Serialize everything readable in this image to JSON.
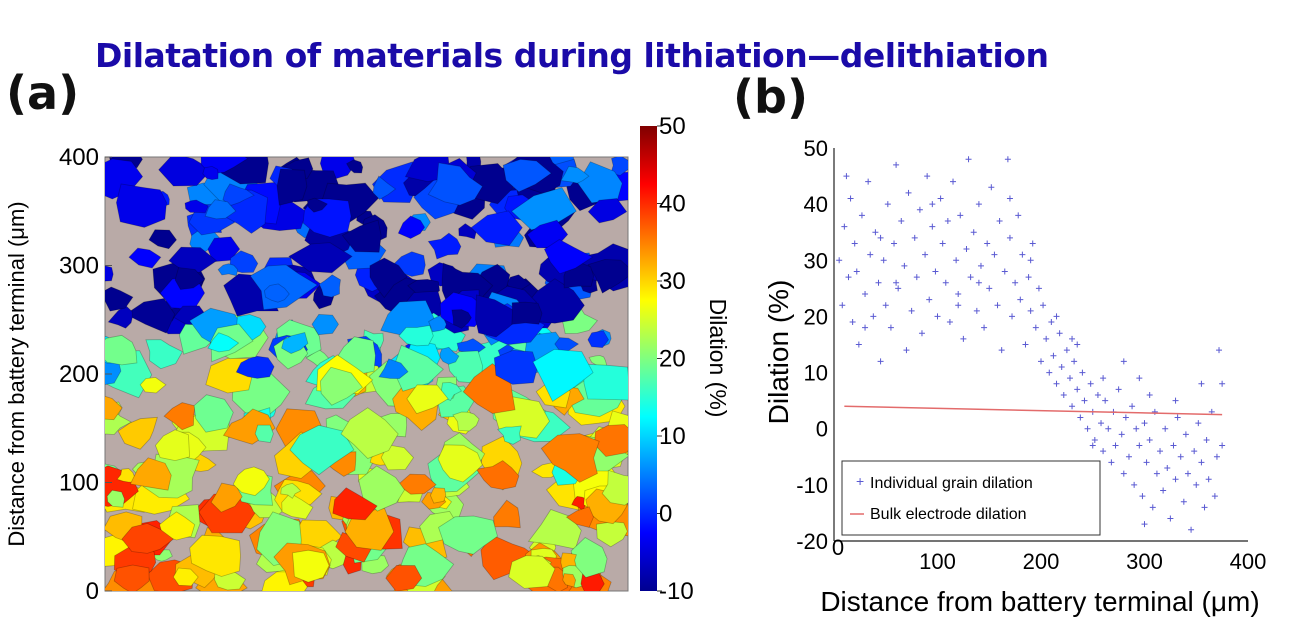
{
  "title": "Dilatation of materials during lithiation—delithiation",
  "panel_a": {
    "label": "(a)",
    "ylabel": "Distance from battery terminal (μm)",
    "yticks": [
      "0",
      "100",
      "200",
      "300",
      "400"
    ],
    "colorbar": {
      "label": "Dilation (%)",
      "ticks": [
        "-10",
        "0",
        "10",
        "20",
        "30",
        "40",
        "50"
      ],
      "range": [
        -10,
        50
      ]
    },
    "background": "#b9aaa7"
  },
  "panel_b": {
    "label": "(b)",
    "legend": {
      "points": "Individual grain dilation",
      "line": "Bulk electrode dilation"
    }
  },
  "chart_data": [
    {
      "type": "heatmap",
      "title": "",
      "ylabel": "Distance from battery terminal (μm)",
      "ylim": [
        0,
        400
      ],
      "yticks": [
        0,
        100,
        200,
        300,
        400
      ],
      "colorbar_label": "Dilation (%)",
      "colorbar_range": [
        -10,
        50
      ],
      "colorbar_ticks": [
        -10,
        0,
        10,
        20,
        30,
        40,
        50
      ],
      "dilation_by_height_band": [
        {
          "band": [
            0,
            100
          ],
          "dilation": 30
        },
        {
          "band": [
            100,
            200
          ],
          "dilation": 25
        },
        {
          "band": [
            200,
            250
          ],
          "dilation": 10
        },
        {
          "band": [
            250,
            400
          ],
          "dilation": -5
        }
      ]
    },
    {
      "type": "scatter",
      "title": "",
      "xlabel": "Distance from battery terminal (μm)",
      "ylabel": "Dilation (%)",
      "xlim": [
        0,
        400
      ],
      "ylim": [
        -20,
        50
      ],
      "xticks": [
        0,
        100,
        200,
        300,
        400
      ],
      "yticks": [
        -20,
        -10,
        0,
        10,
        20,
        30,
        40,
        50
      ],
      "legend_position": "bottom-left",
      "series": [
        {
          "name": "Individual grain dilation",
          "marker": "plus",
          "color": "#5a5ad2",
          "points": [
            [
              5,
              30
            ],
            [
              8,
              22
            ],
            [
              10,
              36
            ],
            [
              12,
              45
            ],
            [
              14,
              27
            ],
            [
              16,
              41
            ],
            [
              18,
              19
            ],
            [
              20,
              33
            ],
            [
              22,
              28
            ],
            [
              24,
              15
            ],
            [
              27,
              38
            ],
            [
              30,
              24
            ],
            [
              33,
              44
            ],
            [
              35,
              31
            ],
            [
              38,
              20
            ],
            [
              40,
              35
            ],
            [
              43,
              26
            ],
            [
              45,
              12
            ],
            [
              48,
              30
            ],
            [
              50,
              22
            ],
            [
              52,
              40
            ],
            [
              55,
              18
            ],
            [
              58,
              33
            ],
            [
              60,
              47
            ],
            [
              62,
              25
            ],
            [
              65,
              37
            ],
            [
              68,
              29
            ],
            [
              70,
              14
            ],
            [
              72,
              42
            ],
            [
              75,
              21
            ],
            [
              78,
              34
            ],
            [
              80,
              27
            ],
            [
              83,
              39
            ],
            [
              85,
              17
            ],
            [
              88,
              31
            ],
            [
              90,
              45
            ],
            [
              92,
              23
            ],
            [
              95,
              36
            ],
            [
              98,
              28
            ],
            [
              100,
              20
            ],
            [
              103,
              41
            ],
            [
              105,
              33
            ],
            [
              108,
              26
            ],
            [
              110,
              37
            ],
            [
              112,
              19
            ],
            [
              115,
              44
            ],
            [
              118,
              30
            ],
            [
              120,
              24
            ],
            [
              122,
              38
            ],
            [
              125,
              16
            ],
            [
              128,
              32
            ],
            [
              130,
              48
            ],
            [
              132,
              27
            ],
            [
              135,
              35
            ],
            [
              138,
              21
            ],
            [
              140,
              40
            ],
            [
              142,
              29
            ],
            [
              145,
              18
            ],
            [
              148,
              33
            ],
            [
              150,
              25
            ],
            [
              152,
              43
            ],
            [
              155,
              31
            ],
            [
              158,
              22
            ],
            [
              160,
              37
            ],
            [
              162,
              14
            ],
            [
              165,
              28
            ],
            [
              168,
              48
            ],
            [
              170,
              34
            ],
            [
              172,
              20
            ],
            [
              175,
              26
            ],
            [
              178,
              38
            ],
            [
              180,
              23
            ],
            [
              182,
              31
            ],
            [
              185,
              15
            ],
            [
              188,
              27
            ],
            [
              190,
              21
            ],
            [
              192,
              33
            ],
            [
              195,
              18
            ],
            [
              198,
              25
            ],
            [
              200,
              12
            ],
            [
              202,
              22
            ],
            [
              205,
              16
            ],
            [
              208,
              10
            ],
            [
              210,
              19
            ],
            [
              212,
              13
            ],
            [
              215,
              8
            ],
            [
              218,
              17
            ],
            [
              220,
              11
            ],
            [
              222,
              6
            ],
            [
              225,
              14
            ],
            [
              228,
              9
            ],
            [
              230,
              4
            ],
            [
              232,
              12
            ],
            [
              235,
              7
            ],
            [
              238,
              2
            ],
            [
              240,
              10
            ],
            [
              242,
              5
            ],
            [
              245,
              0
            ],
            [
              248,
              8
            ],
            [
              250,
              3
            ],
            [
              252,
              -2
            ],
            [
              255,
              6
            ],
            [
              258,
              1
            ],
            [
              260,
              -4
            ],
            [
              262,
              5
            ],
            [
              265,
              0
            ],
            [
              268,
              -6
            ],
            [
              270,
              3
            ],
            [
              272,
              -3
            ],
            [
              275,
              7
            ],
            [
              278,
              -1
            ],
            [
              280,
              -8
            ],
            [
              282,
              2
            ],
            [
              285,
              -5
            ],
            [
              288,
              4
            ],
            [
              290,
              -10
            ],
            [
              292,
              0
            ],
            [
              295,
              -3
            ],
            [
              298,
              -12
            ],
            [
              300,
              1
            ],
            [
              302,
              -6
            ],
            [
              305,
              -2
            ],
            [
              308,
              -14
            ],
            [
              310,
              3
            ],
            [
              312,
              -8
            ],
            [
              315,
              -4
            ],
            [
              318,
              -11
            ],
            [
              320,
              0
            ],
            [
              322,
              -7
            ],
            [
              325,
              -16
            ],
            [
              328,
              -3
            ],
            [
              330,
              -9
            ],
            [
              332,
              2
            ],
            [
              335,
              -5
            ],
            [
              338,
              -13
            ],
            [
              340,
              -1
            ],
            [
              342,
              -8
            ],
            [
              345,
              -18
            ],
            [
              348,
              -4
            ],
            [
              350,
              -10
            ],
            [
              352,
              1
            ],
            [
              355,
              -6
            ],
            [
              358,
              -14
            ],
            [
              360,
              -2
            ],
            [
              362,
              -9
            ],
            [
              365,
              3
            ],
            [
              368,
              -12
            ],
            [
              370,
              -5
            ],
            [
              372,
              14
            ],
            [
              375,
              8
            ],
            [
              120,
              22
            ],
            [
              95,
              40
            ],
            [
              60,
              26
            ],
            [
              30,
              18
            ],
            [
              140,
              26
            ],
            [
              170,
              41
            ],
            [
              190,
              30
            ],
            [
              215,
              20
            ],
            [
              235,
              15
            ],
            [
              260,
              9
            ],
            [
              280,
              12
            ],
            [
              300,
              -17
            ],
            [
              330,
              5
            ],
            [
              355,
              8
            ],
            [
              375,
              -3
            ],
            [
              305,
              6
            ],
            [
              295,
              9
            ],
            [
              250,
              -3
            ],
            [
              230,
              16
            ],
            [
              45,
              34
            ]
          ]
        },
        {
          "name": "Bulk electrode dilation",
          "marker": "line",
          "color": "#e36b6b",
          "points": [
            [
              10,
              4
            ],
            [
              375,
              2.5
            ]
          ]
        }
      ]
    }
  ]
}
